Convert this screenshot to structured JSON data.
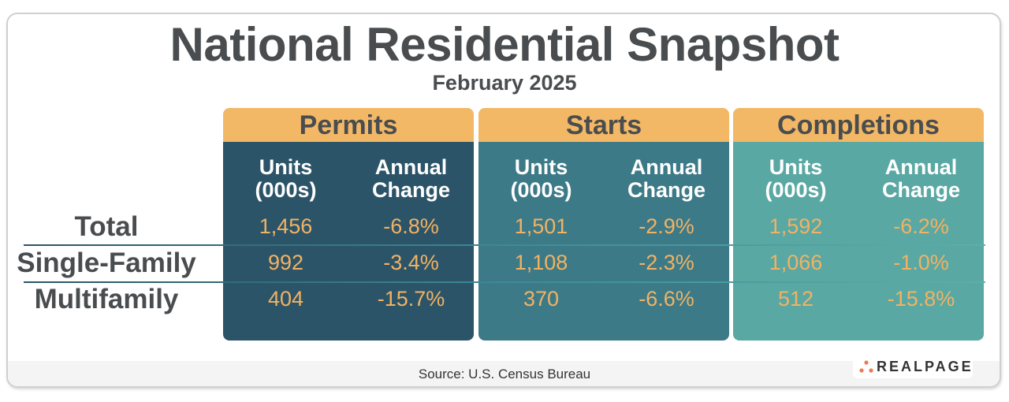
{
  "title": "National Residential Snapshot",
  "subtitle": "February 2025",
  "colors": {
    "header": "#f2b866",
    "permits": "#2c5468",
    "starts": "#3d7a87",
    "completions": "#5aa8a3",
    "values": "#f2b263"
  },
  "chart_data": {
    "type": "table",
    "groups": [
      "Permits",
      "Starts",
      "Completions"
    ],
    "subheaders": [
      "Units (000s)",
      "Annual Change"
    ],
    "rows": [
      {
        "label": "Total",
        "values": [
          "1,456",
          "-6.8%",
          "1,501",
          "-2.9%",
          "1,592",
          "-6.2%"
        ]
      },
      {
        "label": "Single-Family",
        "values": [
          "992",
          "-3.4%",
          "1,108",
          "-2.3%",
          "1,066",
          "-1.0%"
        ]
      },
      {
        "label": "Multifamily",
        "values": [
          "404",
          "-15.7%",
          "370",
          "-6.6%",
          "512",
          "-15.8%"
        ]
      }
    ]
  },
  "sub_units": [
    "Units",
    "(000s)"
  ],
  "sub_change": [
    "Annual",
    "Change"
  ],
  "source": "Source: U.S. Census Bureau",
  "logo": "REALPAGE"
}
